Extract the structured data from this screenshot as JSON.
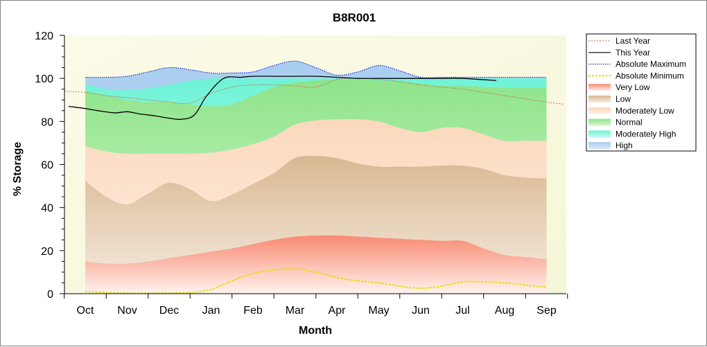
{
  "chart_data": {
    "type": "area",
    "title": "B8R001",
    "xlabel": "Month",
    "ylabel": "% Storage",
    "categories": [
      "Oct",
      "Nov",
      "Dec",
      "Jan",
      "Feb",
      "Mar",
      "Apr",
      "May",
      "Jun",
      "Jul",
      "Aug",
      "Sep"
    ],
    "ylim": [
      0,
      120
    ],
    "yticks": [
      0,
      20,
      40,
      60,
      80,
      100,
      120
    ],
    "grid": false,
    "legend_position": "right",
    "colors": {
      "plot_bg": "#fbfbe6",
      "very_low": "#f98a72",
      "low": "#dcbc98",
      "moderately_low": "#fde0c8",
      "normal": "#8ee48a",
      "moderately_high": "#7af3da",
      "high": "#a8cdef",
      "last_year": "#c96a3c",
      "this_year": "#000000",
      "abs_max": "#0000c8",
      "abs_min": "#e8e800"
    },
    "legend": [
      {
        "key": "last_year",
        "label": "Last Year",
        "kind": "line"
      },
      {
        "key": "this_year",
        "label": "This Year",
        "kind": "line"
      },
      {
        "key": "abs_max",
        "label": "Absolute Maximum",
        "kind": "line"
      },
      {
        "key": "abs_min",
        "label": "Absolute Minimum",
        "kind": "line"
      },
      {
        "key": "very_low",
        "label": "Very Low",
        "kind": "area"
      },
      {
        "key": "low",
        "label": "Low",
        "kind": "area"
      },
      {
        "key": "moderately_low",
        "label": "Moderately Low",
        "kind": "area"
      },
      {
        "key": "normal",
        "label": "Normal",
        "kind": "area"
      },
      {
        "key": "moderately_high",
        "label": "Moderately High",
        "kind": "area"
      },
      {
        "key": "high",
        "label": "High",
        "kind": "area"
      }
    ],
    "bands": {
      "x": [
        0,
        0.5,
        1,
        1.5,
        2,
        2.5,
        3,
        3.5,
        4,
        4.5,
        5,
        5.5,
        6,
        6.5,
        7,
        7.5,
        8,
        8.5,
        9,
        9.5,
        10,
        10.5,
        11
      ],
      "very_low": [
        15,
        14,
        14,
        15,
        16.5,
        18,
        19.5,
        21,
        23,
        25,
        26.5,
        27,
        27,
        26.5,
        26,
        25.5,
        25,
        24.5,
        24.5,
        21,
        18,
        17,
        16
      ],
      "low": [
        52.5,
        45,
        41.5,
        46.5,
        51.5,
        48.5,
        43,
        46,
        51,
        56,
        63,
        64,
        63,
        60.5,
        59,
        59,
        59,
        59.5,
        59.5,
        58,
        55,
        54,
        53.5
      ],
      "moderately_low": [
        68.5,
        66,
        65,
        65,
        65,
        65,
        65.5,
        67,
        69.5,
        73,
        78.5,
        80.5,
        81,
        81,
        80,
        77,
        75,
        77,
        77,
        74,
        71,
        71,
        71
      ],
      "normal": [
        94,
        92,
        90,
        89,
        89,
        88,
        87,
        88,
        92,
        96,
        98,
        99,
        99.5,
        99.5,
        99,
        98.5,
        97.5,
        96.5,
        96.5,
        96,
        95.5,
        95.5,
        95.5
      ],
      "moderately_high": [
        97.5,
        95,
        94.5,
        95.5,
        97,
        99,
        100,
        100,
        100,
        100,
        100,
        100,
        100,
        100,
        100,
        100,
        100,
        100,
        100,
        100,
        100,
        100,
        100
      ],
      "high": [
        100.5,
        100.5,
        101,
        103,
        105,
        104,
        102.5,
        102.5,
        103,
        106,
        108,
        105,
        101.5,
        103,
        106,
        103.5,
        100.5,
        100.5,
        100.5,
        100.5,
        100.5,
        100.5,
        100.5
      ]
    },
    "series": [
      {
        "name": "Last Year",
        "x": [
          -0.5,
          0,
          0.5,
          1,
          1.5,
          2,
          2.5,
          3,
          3.5,
          4,
          4.5,
          5,
          5.5,
          6,
          6.5,
          7,
          7.5,
          8,
          8.5,
          9,
          9.5,
          10,
          10.5,
          11,
          11.4
        ],
        "values": [
          94,
          93.5,
          92,
          91,
          90,
          89,
          88.5,
          93,
          96,
          97,
          97,
          96.5,
          96,
          99.5,
          100,
          99.5,
          98.5,
          97,
          96,
          95,
          93.5,
          92,
          90.5,
          89,
          88
        ]
      },
      {
        "name": "This Year",
        "x": [
          -0.4,
          0,
          0.3,
          0.7,
          1,
          1.3,
          1.7,
          2,
          2.3,
          2.6,
          2.9,
          3.3,
          3.7,
          4,
          4.5,
          5,
          5.5,
          6,
          6.5,
          7,
          7.5,
          8,
          8.5,
          9,
          9.8
        ],
        "values": [
          87,
          86,
          85,
          84,
          84.5,
          83.5,
          82.5,
          81.5,
          81,
          83,
          92,
          100,
          100.5,
          101,
          101,
          101,
          101,
          100.5,
          100,
          100,
          100,
          100,
          100,
          100,
          99
        ]
      },
      {
        "name": "Absolute Maximum",
        "x": [
          0,
          0.5,
          1,
          1.5,
          2,
          2.5,
          3,
          3.5,
          4,
          4.5,
          5,
          5.5,
          6,
          6.5,
          7,
          7.5,
          8,
          8.5,
          9,
          9.5,
          10,
          10.5,
          11
        ],
        "values": [
          100.5,
          100.5,
          101,
          103,
          105,
          104,
          102.5,
          102.5,
          103,
          106,
          108,
          105,
          101.5,
          103,
          106,
          103.5,
          100.5,
          100.5,
          100.5,
          100.5,
          100.5,
          100.5,
          100.5
        ]
      },
      {
        "name": "Absolute Minimum",
        "x": [
          0,
          0.5,
          1,
          1.5,
          2,
          2.5,
          3,
          3.5,
          4,
          4.5,
          5,
          5.5,
          6,
          6.5,
          7,
          7.5,
          8,
          8.5,
          9,
          9.5,
          10,
          10.5,
          11
        ],
        "values": [
          1,
          0.5,
          0.2,
          0.2,
          0.3,
          0.5,
          2,
          6,
          9.5,
          11,
          11.5,
          10,
          7.5,
          6,
          5,
          3.5,
          2.5,
          3.5,
          5.5,
          5.5,
          5,
          4,
          3
        ]
      }
    ]
  }
}
